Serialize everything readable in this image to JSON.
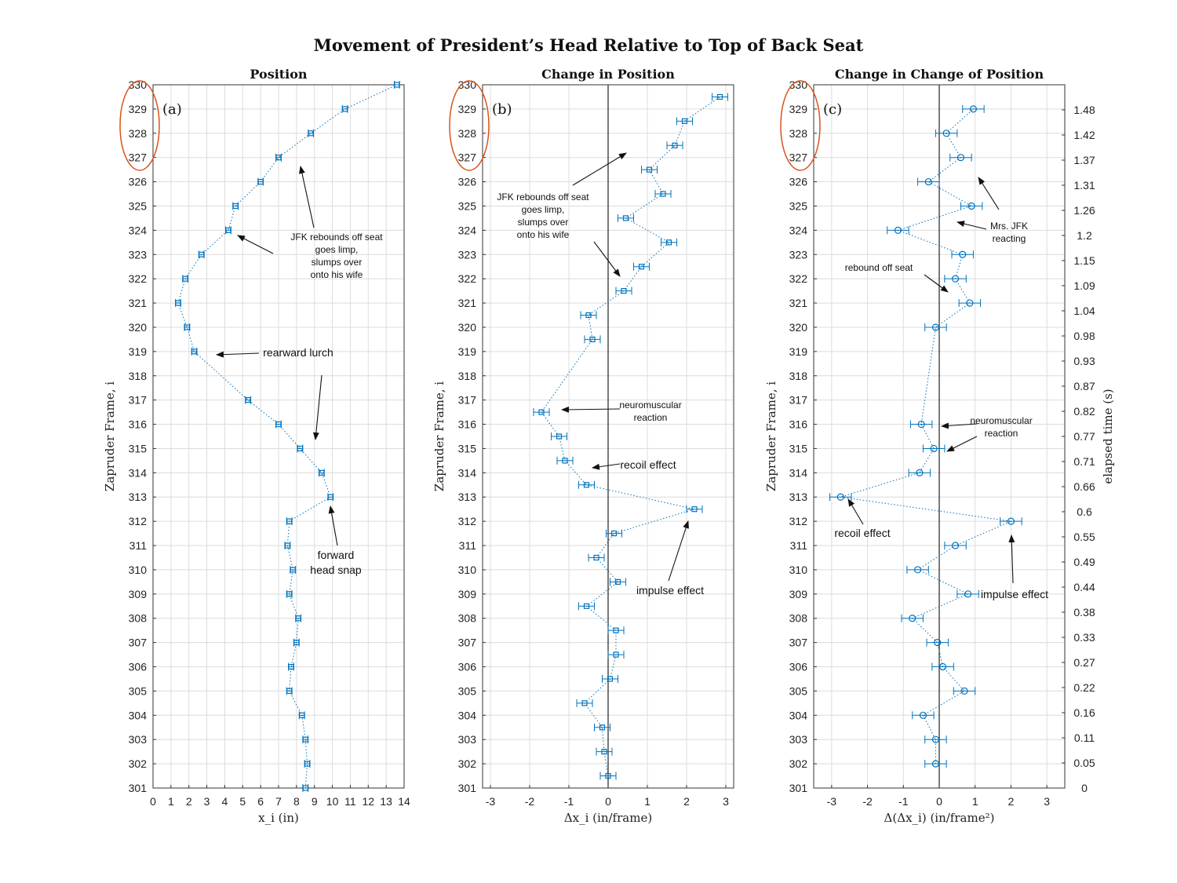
{
  "figure": {
    "title": "Movement of President’s Head Relative to Top of Back Seat",
    "series_color": "#0072BD",
    "highlight_color": "#D95319",
    "right_axis_label": "elapsed time (s)",
    "right_axis_ticks": [
      "0",
      "0.05",
      "0.11",
      "0.16",
      "0.22",
      "0.27",
      "0.33",
      "0.38",
      "0.44",
      "0.49",
      "0.55",
      "0.6",
      "0.66",
      "0.71",
      "0.77",
      "0.82",
      "0.87",
      "0.93",
      "0.98",
      "1.04",
      "1.09",
      "1.15",
      "1.2",
      "1.26",
      "1.31",
      "1.37",
      "1.42",
      "1.48"
    ]
  },
  "chart_data": [
    {
      "type": "scatter",
      "panel_label": "(a)",
      "title": "Position",
      "xlabel": "x_i (in)",
      "ylabel": "Zapruder Frame, i",
      "xlim": [
        0,
        14
      ],
      "ylim": [
        301,
        330
      ],
      "xticks": [
        0,
        1,
        2,
        3,
        4,
        5,
        6,
        7,
        8,
        9,
        10,
        11,
        12,
        13,
        14
      ],
      "yticks": [
        301,
        302,
        303,
        304,
        305,
        306,
        307,
        308,
        309,
        310,
        311,
        312,
        313,
        314,
        315,
        316,
        317,
        318,
        319,
        320,
        321,
        322,
        323,
        324,
        325,
        326,
        327,
        328,
        329,
        330
      ],
      "grid": true,
      "marker": "square",
      "error": 0.15,
      "series": [
        {
          "points": [
            [
              301,
              8.5
            ],
            [
              302,
              8.6
            ],
            [
              303,
              8.5
            ],
            [
              304,
              8.3
            ],
            [
              305,
              7.6
            ],
            [
              306,
              7.7
            ],
            [
              307,
              8.0
            ],
            [
              308,
              8.1
            ],
            [
              309,
              7.6
            ],
            [
              310,
              7.8
            ],
            [
              311,
              7.5
            ],
            [
              312,
              7.6
            ],
            [
              313,
              9.9
            ],
            [
              314,
              9.4
            ],
            [
              315,
              8.2
            ],
            [
              316,
              7.0
            ],
            [
              317,
              5.3
            ],
            [
              319,
              2.3
            ],
            [
              320,
              1.9
            ],
            [
              321,
              1.4
            ],
            [
              322,
              1.8
            ],
            [
              323,
              2.7
            ],
            [
              324,
              4.2
            ],
            [
              325,
              4.6
            ],
            [
              326,
              6.0
            ],
            [
              327,
              7.0
            ],
            [
              328,
              8.8
            ],
            [
              329,
              10.7
            ],
            [
              330,
              13.6
            ]
          ]
        }
      ],
      "annotations": [
        {
          "text": "JFK rebounds off seat",
          "frame": 324.2,
          "x": 9.3
        },
        {
          "text": "goes limp,",
          "frame": 323.7,
          "x": 9.3
        },
        {
          "text": "slumps over",
          "frame": 323.2,
          "x": 9.3
        },
        {
          "text": "onto his wife",
          "frame": 322.7,
          "x": 9.3
        },
        {
          "text": "rearward lurch",
          "frame": 319.0,
          "x": 8.1
        },
        {
          "text": "forward",
          "frame": 310.6,
          "x": 10.2
        },
        {
          "text": "head snap",
          "frame": 310.0,
          "x": 10.2
        }
      ]
    },
    {
      "type": "scatter",
      "panel_label": "(b)",
      "title": "Change in Position",
      "xlabel": "Δx_i (in/frame)",
      "ylabel": "Zapruder Frame, i",
      "xlim": [
        -3.2,
        3.2
      ],
      "ylim": [
        301,
        330
      ],
      "xticks": [
        -3,
        -2,
        -1,
        0,
        1,
        2,
        3
      ],
      "yticks": [
        301,
        302,
        303,
        304,
        305,
        306,
        307,
        308,
        309,
        310,
        311,
        312,
        313,
        314,
        315,
        316,
        317,
        318,
        319,
        320,
        321,
        322,
        323,
        324,
        325,
        326,
        327,
        328,
        329,
        330
      ],
      "grid": true,
      "marker": "square",
      "error": 0.2,
      "series": [
        {
          "points": [
            [
              301.5,
              0.0
            ],
            [
              302.5,
              -0.1
            ],
            [
              303.5,
              -0.15
            ],
            [
              304.5,
              -0.6
            ],
            [
              305.5,
              0.05
            ],
            [
              306.5,
              0.2
            ],
            [
              307.5,
              0.2
            ],
            [
              308.5,
              -0.55
            ],
            [
              309.5,
              0.25
            ],
            [
              310.5,
              -0.3
            ],
            [
              311.5,
              0.15
            ],
            [
              312.5,
              2.2
            ],
            [
              313.5,
              -0.55
            ],
            [
              314.5,
              -1.1
            ],
            [
              315.5,
              -1.25
            ],
            [
              316.5,
              -1.7
            ],
            [
              319.5,
              -0.4
            ],
            [
              320.5,
              -0.5
            ],
            [
              321.5,
              0.4
            ],
            [
              322.5,
              0.85
            ],
            [
              323.5,
              1.55
            ],
            [
              324.5,
              0.45
            ],
            [
              325.5,
              1.4
            ],
            [
              326.5,
              1.05
            ],
            [
              327.5,
              1.7
            ],
            [
              328.5,
              1.95
            ],
            [
              329.5,
              2.85
            ]
          ]
        }
      ],
      "annotations": [
        {
          "text": "JFK rebounds off seat",
          "frame": 325.7,
          "x": -1.0
        },
        {
          "text": "goes limp,",
          "frame": 325.2,
          "x": -1.0
        },
        {
          "text": "slumps over",
          "frame": 324.7,
          "x": -1.0
        },
        {
          "text": "onto his wife",
          "frame": 324.2,
          "x": -1.0
        },
        {
          "text": "neuromuscular",
          "frame": 316.7,
          "x": 1.2
        },
        {
          "text": "reaction",
          "frame": 316.2,
          "x": 1.2
        },
        {
          "text": "recoil effect",
          "frame": 314.3,
          "x": 1.0
        },
        {
          "text": "impulse effect",
          "frame": 309.8,
          "x": 1.6
        }
      ]
    },
    {
      "type": "scatter",
      "panel_label": "(c)",
      "title": "Change in Change of Position",
      "xlabel": "Δ(Δx_i) (in/frame²)",
      "ylabel": "Zapruder Frame, i",
      "xlim": [
        -3.5,
        3.5
      ],
      "ylim": [
        301,
        330
      ],
      "xticks": [
        -3,
        -2,
        -1,
        0,
        1,
        2,
        3
      ],
      "yticks": [
        301,
        302,
        303,
        304,
        305,
        306,
        307,
        308,
        309,
        310,
        311,
        312,
        313,
        314,
        315,
        316,
        317,
        318,
        319,
        320,
        321,
        322,
        323,
        324,
        325,
        326,
        327,
        328,
        329,
        330
      ],
      "grid": true,
      "marker": "circle",
      "error": 0.3,
      "series": [
        {
          "points": [
            [
              302,
              -0.1
            ],
            [
              303,
              -0.1
            ],
            [
              304,
              -0.45
            ],
            [
              305,
              0.7
            ],
            [
              306,
              0.1
            ],
            [
              307,
              -0.05
            ],
            [
              308,
              -0.75
            ],
            [
              309,
              0.8
            ],
            [
              310,
              -0.6
            ],
            [
              311,
              0.45
            ],
            [
              312,
              2.0
            ],
            [
              313,
              -2.75
            ],
            [
              314,
              -0.55
            ],
            [
              315,
              -0.15
            ],
            [
              316,
              -0.5
            ],
            [
              320,
              -0.1
            ],
            [
              321,
              0.85
            ],
            [
              322,
              0.45
            ],
            [
              323,
              0.65
            ],
            [
              324,
              -1.15
            ],
            [
              325,
              0.9
            ],
            [
              326,
              -0.3
            ],
            [
              327,
              0.6
            ],
            [
              328,
              0.2
            ],
            [
              329,
              0.95
            ]
          ]
        }
      ],
      "annotations": [
        {
          "text": "Mrs. JFK",
          "frame": 324.2,
          "x": 1.95
        },
        {
          "text": "reacting",
          "frame": 323.7,
          "x": 1.95
        },
        {
          "text": "rebound off seat",
          "frame": 322.7,
          "x": -2.0
        },
        {
          "text": "neuromuscular",
          "frame": 316.2,
          "x": 1.7
        },
        {
          "text": "reaction",
          "frame": 315.7,
          "x": 1.7
        },
        {
          "text": "recoil effect",
          "frame": 311.8,
          "x": -2.15
        },
        {
          "text": "impulse effect",
          "frame": 309.0,
          "x": 2.1
        }
      ]
    }
  ]
}
